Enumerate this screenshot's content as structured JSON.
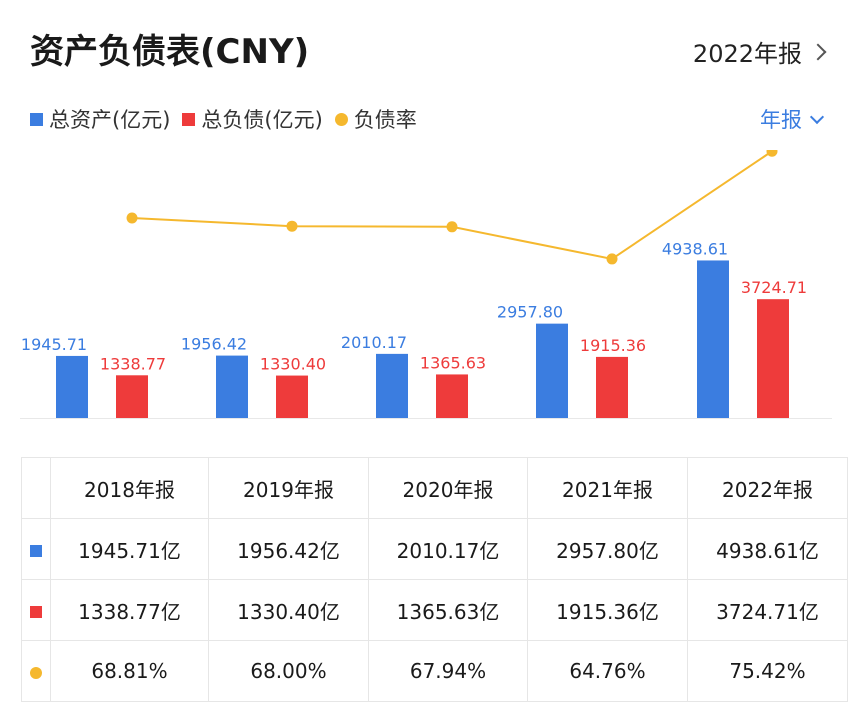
{
  "header": {
    "title": "资产负债表(CNY)",
    "report_link": "2022年报"
  },
  "legend": {
    "items": [
      {
        "label": "总资产(亿元)",
        "color": "#3b7de0",
        "shape": "square"
      },
      {
        "label": "总负债(亿元)",
        "color": "#ee3b3b",
        "shape": "square"
      },
      {
        "label": "负债率",
        "color": "#f5b82e",
        "shape": "circle"
      }
    ]
  },
  "period_selector": {
    "label": "年报"
  },
  "chart_data": {
    "type": "bar",
    "categories": [
      "2018年报",
      "2019年报",
      "2020年报",
      "2021年报",
      "2022年报"
    ],
    "series": [
      {
        "name": "总资产(亿元)",
        "type": "bar",
        "color": "#3b7de0",
        "values": [
          1945.71,
          1956.42,
          2010.17,
          2957.8,
          4938.61
        ],
        "labels": [
          "1945.71",
          "1956.42",
          "2010.17",
          "2957.80",
          "4938.61"
        ]
      },
      {
        "name": "总负债(亿元)",
        "type": "bar",
        "color": "#ee3b3b",
        "values": [
          1338.77,
          1330.4,
          1365.63,
          1915.36,
          3724.71
        ],
        "labels": [
          "1338.77",
          "1330.40",
          "1365.63",
          "1915.36",
          "3724.71"
        ]
      },
      {
        "name": "负债率",
        "type": "line",
        "color": "#f5b82e",
        "values": [
          68.81,
          68.0,
          67.94,
          64.76,
          75.42
        ]
      }
    ]
  },
  "table": {
    "headers": [
      "2018年报",
      "2019年报",
      "2020年报",
      "2021年报",
      "2022年报"
    ],
    "rows": [
      {
        "color": "#3b7de0",
        "marker": "square",
        "cells": [
          "1945.71亿",
          "1956.42亿",
          "2010.17亿",
          "2957.80亿",
          "4938.61亿"
        ]
      },
      {
        "color": "#ee3b3b",
        "marker": "square",
        "cells": [
          "1338.77亿",
          "1330.40亿",
          "1365.63亿",
          "1915.36亿",
          "3724.71亿"
        ]
      },
      {
        "color": "#f5b82e",
        "marker": "circle",
        "cells": [
          "68.81%",
          "68.00%",
          "67.94%",
          "64.76%",
          "75.42%"
        ]
      }
    ]
  }
}
